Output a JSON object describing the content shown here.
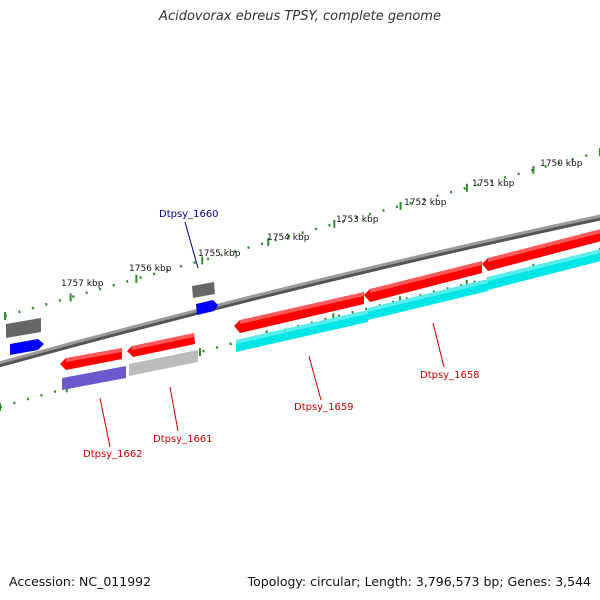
{
  "title": "Acidovorax ebreus TPSY, complete genome",
  "accession": "Accession: NC_011992",
  "summary": "Topology: circular; Length: 3,796,573 bp; Genes: 3,544",
  "ruler_labels": [
    "1757 kbp",
    "1756 kbp",
    "1755 kbp",
    "1754 kbp",
    "1753 kbp",
    "1752 kbp",
    "1751 kbp",
    "1750 kbp"
  ],
  "gene_labels": [
    {
      "name": "Dtpsy_1660",
      "color": "#00008b"
    },
    {
      "name": "Dtpsy_1662",
      "color": "#cc0000"
    },
    {
      "name": "Dtpsy_1661",
      "color": "#cc0000"
    },
    {
      "name": "Dtpsy_1659",
      "color": "#cc0000"
    },
    {
      "name": "Dtpsy_1658",
      "color": "#cc0000"
    }
  ],
  "colors": {
    "cds": "#ff0000",
    "gene_blue": "#0000ff",
    "gene_grey": "#666666",
    "cyan": "#00e5e5",
    "violet": "#6a5acd",
    "silver": "#bbbbbb",
    "backbone": "#777777",
    "ticks": "#2e8b2e"
  },
  "features": [
    {
      "name": "Dtpsy_1662",
      "type": "CDS"
    },
    {
      "name": "Dtpsy_1661",
      "type": "CDS"
    },
    {
      "name": "Dtpsy_1660",
      "type": "gene"
    },
    {
      "name": "Dtpsy_1659",
      "type": "CDS"
    },
    {
      "name": "Dtpsy_1658",
      "type": "CDS"
    }
  ]
}
